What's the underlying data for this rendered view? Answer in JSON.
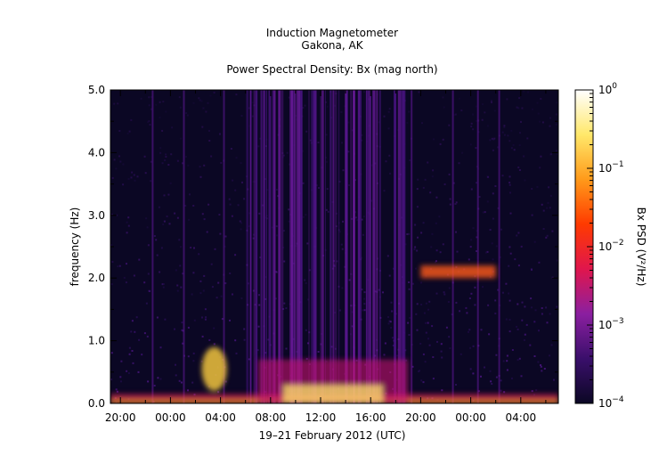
{
  "chart_data": {
    "type": "heatmap",
    "title_lines": [
      "Induction Magnetometer",
      "Gakona, AK"
    ],
    "subtitle": "Power Spectral Density: Bx (mag north)",
    "xlabel": "19–21 February 2012 (UTC)",
    "ylabel": "frequency (Hz)",
    "x_tick_labels": [
      "20:00",
      "00:00",
      "04:00",
      "08:00",
      "12:00",
      "16:00",
      "20:00",
      "00:00",
      "04:00"
    ],
    "x_tick_hours": [
      20,
      24,
      28,
      32,
      36,
      40,
      44,
      48,
      52
    ],
    "xlim_hours": [
      19.2,
      55.0
    ],
    "y_ticks": [
      0.0,
      1.0,
      2.0,
      3.0,
      4.0,
      5.0
    ],
    "y_tick_labels": [
      "0.0",
      "1.0",
      "2.0",
      "3.0",
      "4.0",
      "5.0"
    ],
    "ylim": [
      0,
      5
    ],
    "colorbar": {
      "label": "Bx PSD (V²/Hz)",
      "scale": "log",
      "range": [
        0.0001,
        1
      ],
      "tick_exponents": [
        -4,
        -3,
        -2,
        -1,
        0
      ],
      "colors": [
        "#0b0724",
        "#3a0f6b",
        "#8b1fa0",
        "#e0164d",
        "#ff3a00",
        "#ff9a1a",
        "#ffe86a",
        "#ffffff"
      ]
    },
    "features": [
      {
        "name": "low-frequency band",
        "freq_hz": [
          0.0,
          0.15
        ]
      },
      {
        "name": "daytime enhancement",
        "time_hours": [
          31,
          43
        ],
        "freq_hz": [
          0.0,
          0.7
        ]
      },
      {
        "name": "rising tone",
        "time_hours": [
          26.5,
          28.5
        ],
        "freq_hz": [
          0.2,
          0.9
        ]
      },
      {
        "name": "Pc1 band",
        "time_hours": [
          44,
          50
        ],
        "freq_hz": [
          2.0,
          2.2
        ]
      }
    ]
  }
}
